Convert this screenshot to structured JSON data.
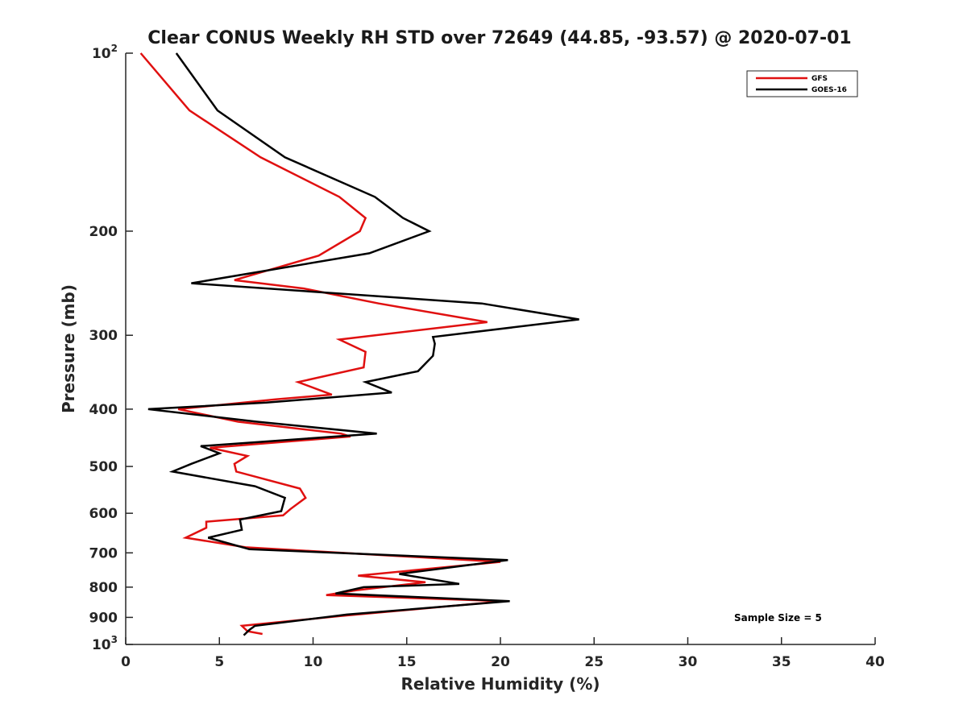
{
  "chart_data": {
    "type": "line",
    "title": "Clear CONUS Weekly RH STD over 72649 (44.85, -93.57) @ 2020-07-01",
    "xlabel": "Relative Humidity (%)",
    "ylabel": "Pressure (mb)",
    "xlim": [
      0,
      40
    ],
    "ylim": [
      100,
      1000
    ],
    "yscale": "log",
    "y_reversed": true,
    "x_ticks": [
      "0",
      "5",
      "10",
      "15",
      "20",
      "25",
      "30",
      "35",
      "40"
    ],
    "y_ticks": [
      {
        "value": 100,
        "label": "10",
        "sup": "2"
      },
      {
        "value": 200,
        "label": "200",
        "sup": ""
      },
      {
        "value": 300,
        "label": "300",
        "sup": ""
      },
      {
        "value": 400,
        "label": "400",
        "sup": ""
      },
      {
        "value": 500,
        "label": "500",
        "sup": ""
      },
      {
        "value": 600,
        "label": "600",
        "sup": ""
      },
      {
        "value": 700,
        "label": "700",
        "sup": ""
      },
      {
        "value": 800,
        "label": "800",
        "sup": ""
      },
      {
        "value": 900,
        "label": "900",
        "sup": ""
      },
      {
        "value": 1000,
        "label": "10",
        "sup": "3"
      }
    ],
    "grid": false,
    "legend_position": "top-right",
    "annotation": "Sample Size = 5",
    "series": [
      {
        "name": "GFS",
        "color": "#e01010",
        "points": [
          [
            0.8,
            100
          ],
          [
            3.4,
            125
          ],
          [
            7.2,
            150
          ],
          [
            11.4,
            175
          ],
          [
            12.8,
            190
          ],
          [
            12.5,
            200
          ],
          [
            10.3,
            220
          ],
          [
            5.8,
            242
          ],
          [
            9.5,
            250
          ],
          [
            13.5,
            265
          ],
          [
            19.3,
            285
          ],
          [
            11.4,
            305
          ],
          [
            12.8,
            320
          ],
          [
            12.7,
            340
          ],
          [
            9.2,
            360
          ],
          [
            11.0,
            378
          ],
          [
            8.0,
            385
          ],
          [
            2.8,
            400
          ],
          [
            6.0,
            420
          ],
          [
            11.5,
            440
          ],
          [
            12.0,
            445
          ],
          [
            4.5,
            465
          ],
          [
            6.5,
            480
          ],
          [
            5.8,
            495
          ],
          [
            5.9,
            510
          ],
          [
            9.3,
            545
          ],
          [
            9.6,
            565
          ],
          [
            8.8,
            590
          ],
          [
            8.4,
            605
          ],
          [
            4.3,
            620
          ],
          [
            4.3,
            635
          ],
          [
            3.2,
            660
          ],
          [
            6.4,
            685
          ],
          [
            20.0,
            725
          ],
          [
            12.4,
            765
          ],
          [
            16.0,
            785
          ],
          [
            12.3,
            810
          ],
          [
            10.7,
            825
          ],
          [
            20.2,
            845
          ],
          [
            11.5,
            895
          ],
          [
            6.2,
            930
          ],
          [
            6.5,
            950
          ],
          [
            7.3,
            960
          ]
        ]
      },
      {
        "name": "GOES-16",
        "color": "#000000",
        "points": [
          [
            2.7,
            100
          ],
          [
            4.9,
            125
          ],
          [
            8.5,
            150
          ],
          [
            13.3,
            175
          ],
          [
            14.8,
            190
          ],
          [
            16.2,
            200
          ],
          [
            13.0,
            218
          ],
          [
            3.5,
            245
          ],
          [
            19.0,
            265
          ],
          [
            24.2,
            282
          ],
          [
            16.4,
            302
          ],
          [
            16.5,
            310
          ],
          [
            16.4,
            325
          ],
          [
            15.6,
            345
          ],
          [
            12.8,
            360
          ],
          [
            14.2,
            375
          ],
          [
            7.5,
            390
          ],
          [
            1.2,
            400
          ],
          [
            7.0,
            420
          ],
          [
            13.4,
            440
          ],
          [
            4.0,
            462
          ],
          [
            5.0,
            475
          ],
          [
            3.5,
            495
          ],
          [
            2.5,
            510
          ],
          [
            6.9,
            540
          ],
          [
            8.5,
            565
          ],
          [
            8.3,
            595
          ],
          [
            6.1,
            615
          ],
          [
            6.2,
            640
          ],
          [
            4.4,
            660
          ],
          [
            6.6,
            690
          ],
          [
            20.4,
            720
          ],
          [
            14.6,
            760
          ],
          [
            17.8,
            790
          ],
          [
            12.7,
            800
          ],
          [
            11.2,
            820
          ],
          [
            20.5,
            845
          ],
          [
            11.8,
            890
          ],
          [
            6.9,
            930
          ],
          [
            6.6,
            945
          ],
          [
            6.3,
            965
          ]
        ]
      }
    ]
  }
}
